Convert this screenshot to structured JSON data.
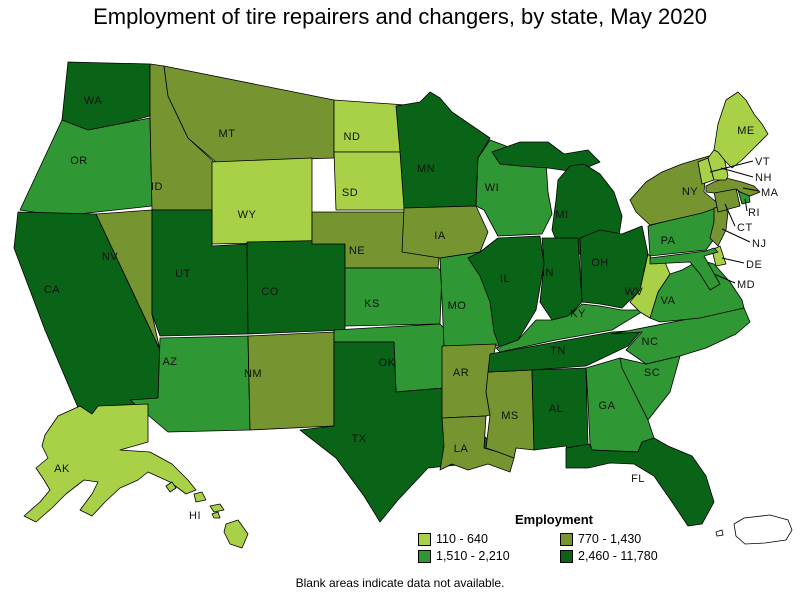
{
  "title": "Employment of tire repairers and changers, by state, May 2020",
  "note": "Blank areas indicate data not available.",
  "legend": {
    "title": "Employment",
    "classes": [
      {
        "id": 1,
        "label": "110 - 640",
        "color": "#a8d148"
      },
      {
        "id": 2,
        "label": "770 - 1,430",
        "color": "#76942f"
      },
      {
        "id": 3,
        "label": "1,510 - 2,210",
        "color": "#2f9733"
      },
      {
        "id": 4,
        "label": "2,460 - 11,780",
        "color": "#0a6418"
      }
    ]
  },
  "callout_states": [
    "VT",
    "NH",
    "MA",
    "RI",
    "CT",
    "NJ",
    "DE",
    "MD"
  ],
  "states": [
    {
      "abbr": "WA",
      "class": 4
    },
    {
      "abbr": "OR",
      "class": 3
    },
    {
      "abbr": "CA",
      "class": 4
    },
    {
      "abbr": "NV",
      "class": 2
    },
    {
      "abbr": "ID",
      "class": 2
    },
    {
      "abbr": "MT",
      "class": 2
    },
    {
      "abbr": "WY",
      "class": 1
    },
    {
      "abbr": "UT",
      "class": 4
    },
    {
      "abbr": "CO",
      "class": 4
    },
    {
      "abbr": "AZ",
      "class": 3
    },
    {
      "abbr": "NM",
      "class": 2
    },
    {
      "abbr": "ND",
      "class": 1
    },
    {
      "abbr": "SD",
      "class": 1
    },
    {
      "abbr": "NE",
      "class": 2
    },
    {
      "abbr": "KS",
      "class": 3
    },
    {
      "abbr": "OK",
      "class": 3
    },
    {
      "abbr": "TX",
      "class": 4
    },
    {
      "abbr": "MN",
      "class": 4
    },
    {
      "abbr": "IA",
      "class": 2
    },
    {
      "abbr": "MO",
      "class": 3
    },
    {
      "abbr": "AR",
      "class": 2
    },
    {
      "abbr": "LA",
      "class": 2
    },
    {
      "abbr": "WI",
      "class": 3
    },
    {
      "abbr": "IL",
      "class": 4
    },
    {
      "abbr": "MS",
      "class": 2
    },
    {
      "abbr": "MI",
      "class": 4
    },
    {
      "abbr": "IN",
      "class": 4
    },
    {
      "abbr": "OH",
      "class": 4
    },
    {
      "abbr": "KY",
      "class": 3
    },
    {
      "abbr": "TN",
      "class": 4
    },
    {
      "abbr": "AL",
      "class": 4
    },
    {
      "abbr": "GA",
      "class": 3
    },
    {
      "abbr": "FL",
      "class": 4
    },
    {
      "abbr": "SC",
      "class": 3
    },
    {
      "abbr": "NC",
      "class": 3
    },
    {
      "abbr": "VA",
      "class": 3
    },
    {
      "abbr": "WV",
      "class": 1
    },
    {
      "abbr": "PA",
      "class": 3
    },
    {
      "abbr": "NY",
      "class": 2
    },
    {
      "abbr": "NJ",
      "class": 2
    },
    {
      "abbr": "DE",
      "class": 1
    },
    {
      "abbr": "MD",
      "class": 3
    },
    {
      "abbr": "CT",
      "class": 2
    },
    {
      "abbr": "RI",
      "class": 3
    },
    {
      "abbr": "MA",
      "class": 2
    },
    {
      "abbr": "VT",
      "class": 1
    },
    {
      "abbr": "NH",
      "class": 1
    },
    {
      "abbr": "ME",
      "class": 1
    },
    {
      "abbr": "AK",
      "class": 1
    },
    {
      "abbr": "HI",
      "class": 1
    }
  ],
  "chart_data": {
    "type": "choropleth",
    "title": "Employment of tire repairers and changers, by state, May 2020",
    "legend_title": "Employment",
    "legend_position": "bottom",
    "classes": [
      "110 - 640",
      "770 - 1,430",
      "1,510 - 2,210",
      "2,460 - 11,780"
    ],
    "state_class_labels": {
      "WA": "2,460 - 11,780",
      "OR": "1,510 - 2,210",
      "CA": "2,460 - 11,780",
      "NV": "770 - 1,430",
      "ID": "770 - 1,430",
      "MT": "770 - 1,430",
      "WY": "110 - 640",
      "UT": "2,460 - 11,780",
      "CO": "2,460 - 11,780",
      "AZ": "1,510 - 2,210",
      "NM": "770 - 1,430",
      "ND": "110 - 640",
      "SD": "110 - 640",
      "NE": "770 - 1,430",
      "KS": "1,510 - 2,210",
      "OK": "1,510 - 2,210",
      "TX": "2,460 - 11,780",
      "MN": "2,460 - 11,780",
      "IA": "770 - 1,430",
      "MO": "1,510 - 2,210",
      "AR": "770 - 1,430",
      "LA": "770 - 1,430",
      "WI": "1,510 - 2,210",
      "IL": "2,460 - 11,780",
      "MS": "770 - 1,430",
      "MI": "2,460 - 11,780",
      "IN": "2,460 - 11,780",
      "OH": "2,460 - 11,780",
      "KY": "1,510 - 2,210",
      "TN": "2,460 - 11,780",
      "AL": "2,460 - 11,780",
      "GA": "1,510 - 2,210",
      "FL": "2,460 - 11,780",
      "SC": "1,510 - 2,210",
      "NC": "1,510 - 2,210",
      "VA": "1,510 - 2,210",
      "WV": "110 - 640",
      "PA": "1,510 - 2,210",
      "NY": "770 - 1,430",
      "NJ": "770 - 1,430",
      "DE": "110 - 640",
      "MD": "1,510 - 2,210",
      "CT": "770 - 1,430",
      "RI": "1,510 - 2,210",
      "MA": "770 - 1,430",
      "VT": "110 - 640",
      "NH": "110 - 640",
      "ME": "110 - 640",
      "AK": "110 - 640",
      "HI": "110 - 640"
    },
    "footnote": "Blank areas indicate data not available."
  }
}
